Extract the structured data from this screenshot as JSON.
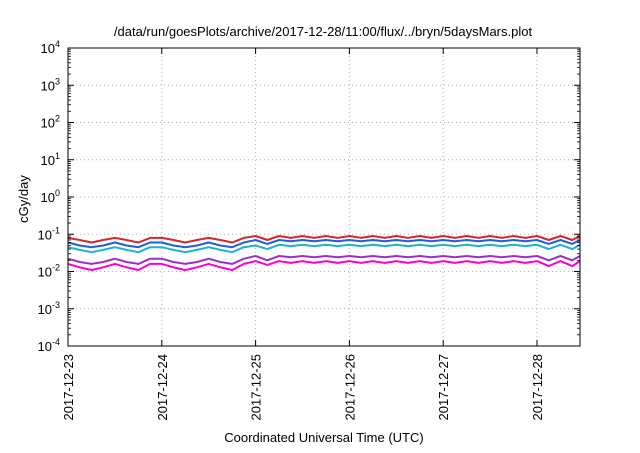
{
  "chart_data": {
    "type": "line",
    "title": "/data/run/goesPlots/archive/2017-12-28/11:00/flux/../bryn/5daysMars.plot",
    "xlabel": "Coordinated Universal Time (UTC)",
    "ylabel": "cGy/day",
    "yscale": "log",
    "ylim": [
      0.0001,
      10000
    ],
    "xlim": [
      "2017-12-23T00:00",
      "2017-12-28T11:00"
    ],
    "grid": true,
    "x_ticks": [
      "2017-12-23",
      "2017-12-24",
      "2017-12-25",
      "2017-12-26",
      "2017-12-27",
      "2017-12-28"
    ],
    "y_ticks": [
      {
        "base": "10",
        "exp": "-4"
      },
      {
        "base": "10",
        "exp": "-3"
      },
      {
        "base": "10",
        "exp": "-2"
      },
      {
        "base": "10",
        "exp": "-1"
      },
      {
        "base": "10",
        "exp": "0"
      },
      {
        "base": "10",
        "exp": "1"
      },
      {
        "base": "10",
        "exp": "2"
      },
      {
        "base": "10",
        "exp": "3"
      },
      {
        "base": "10",
        "exp": "4"
      }
    ],
    "x": [
      "2017-12-23T00:00",
      "2017-12-23T03:00",
      "2017-12-23T06:00",
      "2017-12-23T09:00",
      "2017-12-23T12:00",
      "2017-12-23T15:00",
      "2017-12-23T18:00",
      "2017-12-23T21:00",
      "2017-12-24T00:00",
      "2017-12-24T03:00",
      "2017-12-24T06:00",
      "2017-12-24T09:00",
      "2017-12-24T12:00",
      "2017-12-24T15:00",
      "2017-12-24T18:00",
      "2017-12-24T21:00",
      "2017-12-25T00:00",
      "2017-12-25T03:00",
      "2017-12-25T06:00",
      "2017-12-25T09:00",
      "2017-12-25T12:00",
      "2017-12-25T15:00",
      "2017-12-25T18:00",
      "2017-12-25T21:00",
      "2017-12-26T00:00",
      "2017-12-26T03:00",
      "2017-12-26T06:00",
      "2017-12-26T09:00",
      "2017-12-26T12:00",
      "2017-12-26T15:00",
      "2017-12-26T18:00",
      "2017-12-26T21:00",
      "2017-12-27T00:00",
      "2017-12-27T03:00",
      "2017-12-27T06:00",
      "2017-12-27T09:00",
      "2017-12-27T12:00",
      "2017-12-27T15:00",
      "2017-12-27T18:00",
      "2017-12-27T21:00",
      "2017-12-28T00:00",
      "2017-12-28T03:00",
      "2017-12-28T06:00",
      "2017-12-28T09:00",
      "2017-12-28T11:00"
    ],
    "series": [
      {
        "color": "#d62728",
        "values": [
          0.08,
          0.07,
          0.06,
          0.07,
          0.08,
          0.07,
          0.06,
          0.08,
          0.08,
          0.07,
          0.06,
          0.07,
          0.08,
          0.07,
          0.06,
          0.08,
          0.09,
          0.07,
          0.09,
          0.08,
          0.09,
          0.08,
          0.09,
          0.08,
          0.09,
          0.08,
          0.09,
          0.08,
          0.09,
          0.08,
          0.09,
          0.08,
          0.09,
          0.08,
          0.09,
          0.08,
          0.09,
          0.08,
          0.09,
          0.08,
          0.09,
          0.07,
          0.09,
          0.07,
          0.09
        ]
      },
      {
        "color": "#1f5fd6",
        "values": [
          0.06,
          0.05,
          0.045,
          0.05,
          0.06,
          0.05,
          0.045,
          0.06,
          0.06,
          0.05,
          0.045,
          0.05,
          0.06,
          0.05,
          0.045,
          0.06,
          0.07,
          0.055,
          0.07,
          0.065,
          0.07,
          0.065,
          0.07,
          0.065,
          0.07,
          0.065,
          0.07,
          0.065,
          0.07,
          0.065,
          0.07,
          0.065,
          0.07,
          0.065,
          0.07,
          0.065,
          0.07,
          0.065,
          0.07,
          0.065,
          0.07,
          0.055,
          0.07,
          0.055,
          0.07
        ]
      },
      {
        "color": "#20b2c8",
        "values": [
          0.045,
          0.038,
          0.033,
          0.038,
          0.045,
          0.038,
          0.033,
          0.045,
          0.045,
          0.038,
          0.033,
          0.038,
          0.045,
          0.038,
          0.033,
          0.045,
          0.05,
          0.04,
          0.052,
          0.048,
          0.052,
          0.048,
          0.052,
          0.048,
          0.052,
          0.048,
          0.052,
          0.048,
          0.052,
          0.048,
          0.052,
          0.048,
          0.052,
          0.048,
          0.052,
          0.048,
          0.052,
          0.048,
          0.052,
          0.048,
          0.052,
          0.04,
          0.052,
          0.04,
          0.052
        ]
      },
      {
        "color": "#9b30c8",
        "values": [
          0.022,
          0.018,
          0.016,
          0.018,
          0.022,
          0.018,
          0.016,
          0.022,
          0.022,
          0.018,
          0.016,
          0.018,
          0.022,
          0.018,
          0.016,
          0.022,
          0.026,
          0.02,
          0.026,
          0.024,
          0.026,
          0.024,
          0.026,
          0.024,
          0.026,
          0.024,
          0.026,
          0.024,
          0.026,
          0.024,
          0.026,
          0.024,
          0.026,
          0.024,
          0.026,
          0.024,
          0.026,
          0.024,
          0.026,
          0.024,
          0.026,
          0.02,
          0.026,
          0.02,
          0.026
        ]
      },
      {
        "color": "#ff00cc",
        "values": [
          0.016,
          0.013,
          0.011,
          0.013,
          0.016,
          0.013,
          0.011,
          0.016,
          0.016,
          0.013,
          0.011,
          0.013,
          0.016,
          0.013,
          0.011,
          0.016,
          0.019,
          0.015,
          0.019,
          0.017,
          0.019,
          0.017,
          0.019,
          0.017,
          0.019,
          0.017,
          0.019,
          0.017,
          0.019,
          0.017,
          0.019,
          0.017,
          0.019,
          0.017,
          0.019,
          0.017,
          0.019,
          0.017,
          0.019,
          0.017,
          0.019,
          0.014,
          0.019,
          0.014,
          0.019
        ]
      }
    ]
  }
}
